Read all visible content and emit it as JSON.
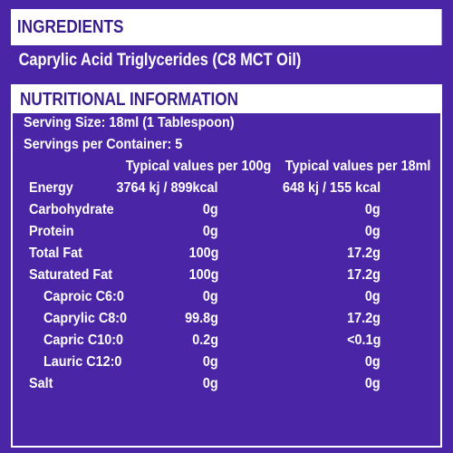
{
  "ingredients": {
    "title": "INGREDIENTS",
    "text": "Caprylic Acid Triglycerides (C8 MCT Oil)"
  },
  "nutrition": {
    "title": "NUTRITIONAL INFORMATION",
    "serving_size": "Serving Size: 18ml (1 Tablespoon)",
    "servings_per_container": "Servings per Container: 5",
    "col_per_100g": "Typical values per 100g",
    "col_per_18ml": "Typical values per 18ml",
    "rows": [
      {
        "label": "Energy",
        "per100": "3764 kj / 899kcal",
        "per18": "648 kj / 155 kcal"
      },
      {
        "label": "Carbohydrate",
        "per100": "0g",
        "per18": "0g"
      },
      {
        "label": "Protein",
        "per100": "0g",
        "per18": "0g"
      },
      {
        "label": "Total Fat",
        "per100": "100g",
        "per18": "17.2g"
      },
      {
        "label": "Saturated Fat",
        "per100": "100g",
        "per18": "17.2g"
      },
      {
        "label": "Caproic C6:0",
        "per100": "0g",
        "per18": "0g"
      },
      {
        "label": "Caprylic C8:0",
        "per100": "99.8g",
        "per18": "17.2g"
      },
      {
        "label": "Capric C10:0",
        "per100": "0.2g",
        "per18": "<0.1g"
      },
      {
        "label": "Lauric C12:0",
        "per100": "0g",
        "per18": "0g"
      },
      {
        "label": "Salt",
        "per100": "0g",
        "per18": "0g"
      }
    ]
  },
  "colors": {
    "background": "#4a25a5",
    "header_text": "#3a1d8c",
    "text": "#ffffff"
  }
}
